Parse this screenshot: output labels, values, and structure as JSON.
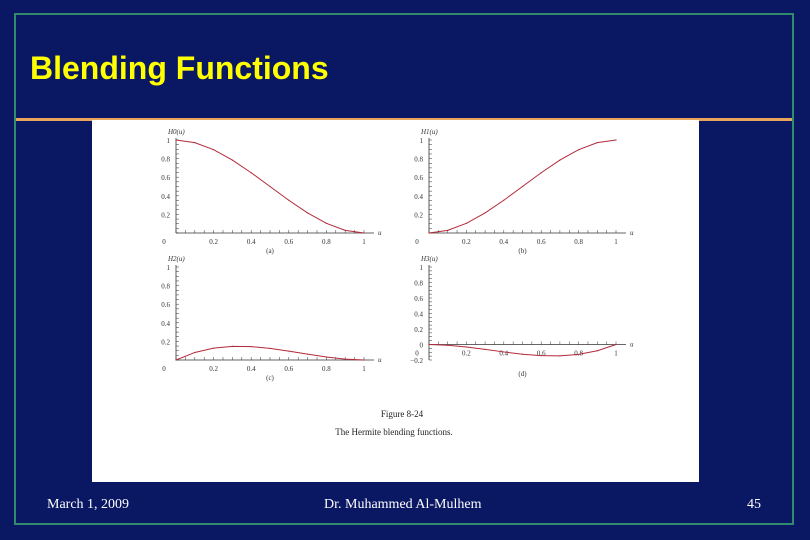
{
  "slide": {
    "title": "Blending Functions",
    "footer_left": "March 1, 2009",
    "footer_center": "Dr. Muhammed Al-Mulhem",
    "footer_right": "45"
  },
  "figure": {
    "caption_number": "Figure 8-24",
    "caption_text": "The Hermite blending functions."
  },
  "colors": {
    "background": "#0a1763",
    "title": "#ffff00",
    "rule": "#e8a35c",
    "border": "#2f8a6e",
    "curve": "#b22a3a"
  },
  "chart_data": [
    {
      "type": "line",
      "panel": "(a)",
      "ylabel": "H0(u)",
      "xlabel": "u",
      "xlim": [
        0,
        1
      ],
      "ylim": [
        0,
        1
      ],
      "x_ticks": [
        "0",
        "0.2",
        "0.4",
        "0.6",
        "0.8",
        "1"
      ],
      "y_ticks": [
        "0.2",
        "0.4",
        "0.6",
        "0.8",
        "1"
      ],
      "series": [
        {
          "x": [
            0,
            0.1,
            0.2,
            0.3,
            0.4,
            0.5,
            0.6,
            0.7,
            0.8,
            0.9,
            1.0
          ],
          "values": [
            1.0,
            0.972,
            0.896,
            0.784,
            0.648,
            0.5,
            0.352,
            0.216,
            0.104,
            0.028,
            0.0
          ]
        }
      ]
    },
    {
      "type": "line",
      "panel": "(b)",
      "ylabel": "H1(u)",
      "xlabel": "u",
      "xlim": [
        0,
        1
      ],
      "ylim": [
        0,
        1
      ],
      "x_ticks": [
        "0",
        "0.2",
        "0.4",
        "0.6",
        "0.8",
        "1"
      ],
      "y_ticks": [
        "0.2",
        "0.4",
        "0.6",
        "0.8",
        "1"
      ],
      "series": [
        {
          "x": [
            0,
            0.1,
            0.2,
            0.3,
            0.4,
            0.5,
            0.6,
            0.7,
            0.8,
            0.9,
            1.0
          ],
          "values": [
            0.0,
            0.028,
            0.104,
            0.216,
            0.352,
            0.5,
            0.648,
            0.784,
            0.896,
            0.972,
            1.0
          ]
        }
      ]
    },
    {
      "type": "line",
      "panel": "(c)",
      "ylabel": "H2(u)",
      "xlabel": "u",
      "xlim": [
        0,
        1
      ],
      "ylim": [
        0,
        1
      ],
      "x_ticks": [
        "0",
        "0.2",
        "0.4",
        "0.6",
        "0.8",
        "1"
      ],
      "y_ticks": [
        "0.2",
        "0.4",
        "0.6",
        "0.8",
        "1"
      ],
      "series": [
        {
          "x": [
            0,
            0.1,
            0.2,
            0.3,
            0.4,
            0.5,
            0.6,
            0.7,
            0.8,
            0.9,
            1.0
          ],
          "values": [
            0.0,
            0.081,
            0.128,
            0.147,
            0.144,
            0.125,
            0.096,
            0.063,
            0.032,
            0.009,
            0.0
          ]
        }
      ]
    },
    {
      "type": "line",
      "panel": "(d)",
      "ylabel": "H3(u)",
      "xlabel": "u",
      "xlim": [
        0,
        1
      ],
      "ylim": [
        -0.2,
        1
      ],
      "x_ticks": [
        "0",
        "0.2",
        "0.4",
        "0.6",
        "0.8",
        "1"
      ],
      "y_ticks": [
        "−0.2",
        "0",
        "0.2",
        "0.4",
        "0.6",
        "0.8",
        "1"
      ],
      "series": [
        {
          "x": [
            0,
            0.1,
            0.2,
            0.3,
            0.4,
            0.5,
            0.6,
            0.7,
            0.8,
            0.9,
            1.0
          ],
          "values": [
            0.0,
            -0.009,
            -0.032,
            -0.063,
            -0.096,
            -0.125,
            -0.144,
            -0.147,
            -0.128,
            -0.081,
            0.0
          ]
        }
      ]
    }
  ]
}
